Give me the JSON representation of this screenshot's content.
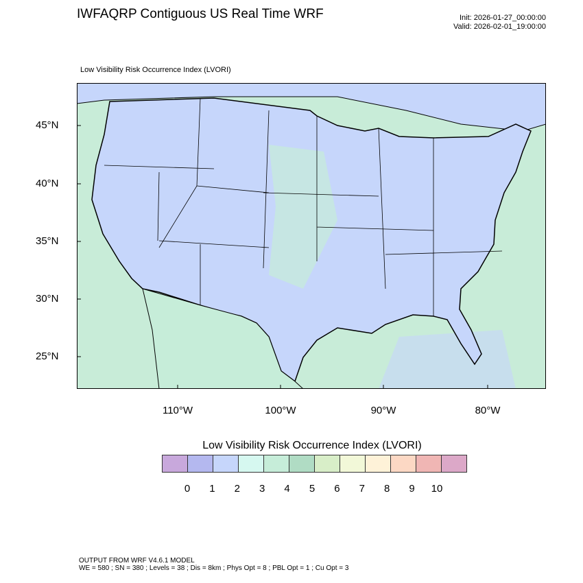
{
  "header": {
    "title": "IWFAQRP Contiguous US Real Time WRF",
    "init": "Init: 2026-01-27_00:00:00",
    "valid": "Valid: 2026-02-01_19:00:00",
    "subtitle": "Low Visibility Risk Occurrence Index   (LVORI)"
  },
  "map": {
    "lat_labels": [
      "45°N",
      "40°N",
      "35°N",
      "30°N",
      "25°N"
    ],
    "lon_labels": [
      "110°W",
      "100°W",
      "90°W",
      "80°W"
    ],
    "colors": {
      "land": "#c6d6fb",
      "ocean": "#c8ecd8",
      "water_blue": "#c6d6fb"
    }
  },
  "colorbar": {
    "title": "Low Visibility Risk Occurrence Index  (LVORI)",
    "labels": [
      "0",
      "1",
      "2",
      "3",
      "4",
      "5",
      "6",
      "7",
      "8",
      "9",
      "10"
    ],
    "colors": [
      "#c8a8dc",
      "#b4b8ef",
      "#c6d6fb",
      "#d6f8f0",
      "#c6edd9",
      "#b0dcc4",
      "#d8eec8",
      "#f2f8d8",
      "#fef2d8",
      "#fcd8c4",
      "#f0b6b4",
      "#dca8c8"
    ]
  },
  "footer": {
    "line1": "OUTPUT FROM WRF V4.6.1 MODEL",
    "line2": "WE = 580 ; SN = 380 ; Levels = 38 ; Dis = 8km ; Phys Opt = 8 ; PBL Opt = 1 ; Cu Opt = 3"
  }
}
